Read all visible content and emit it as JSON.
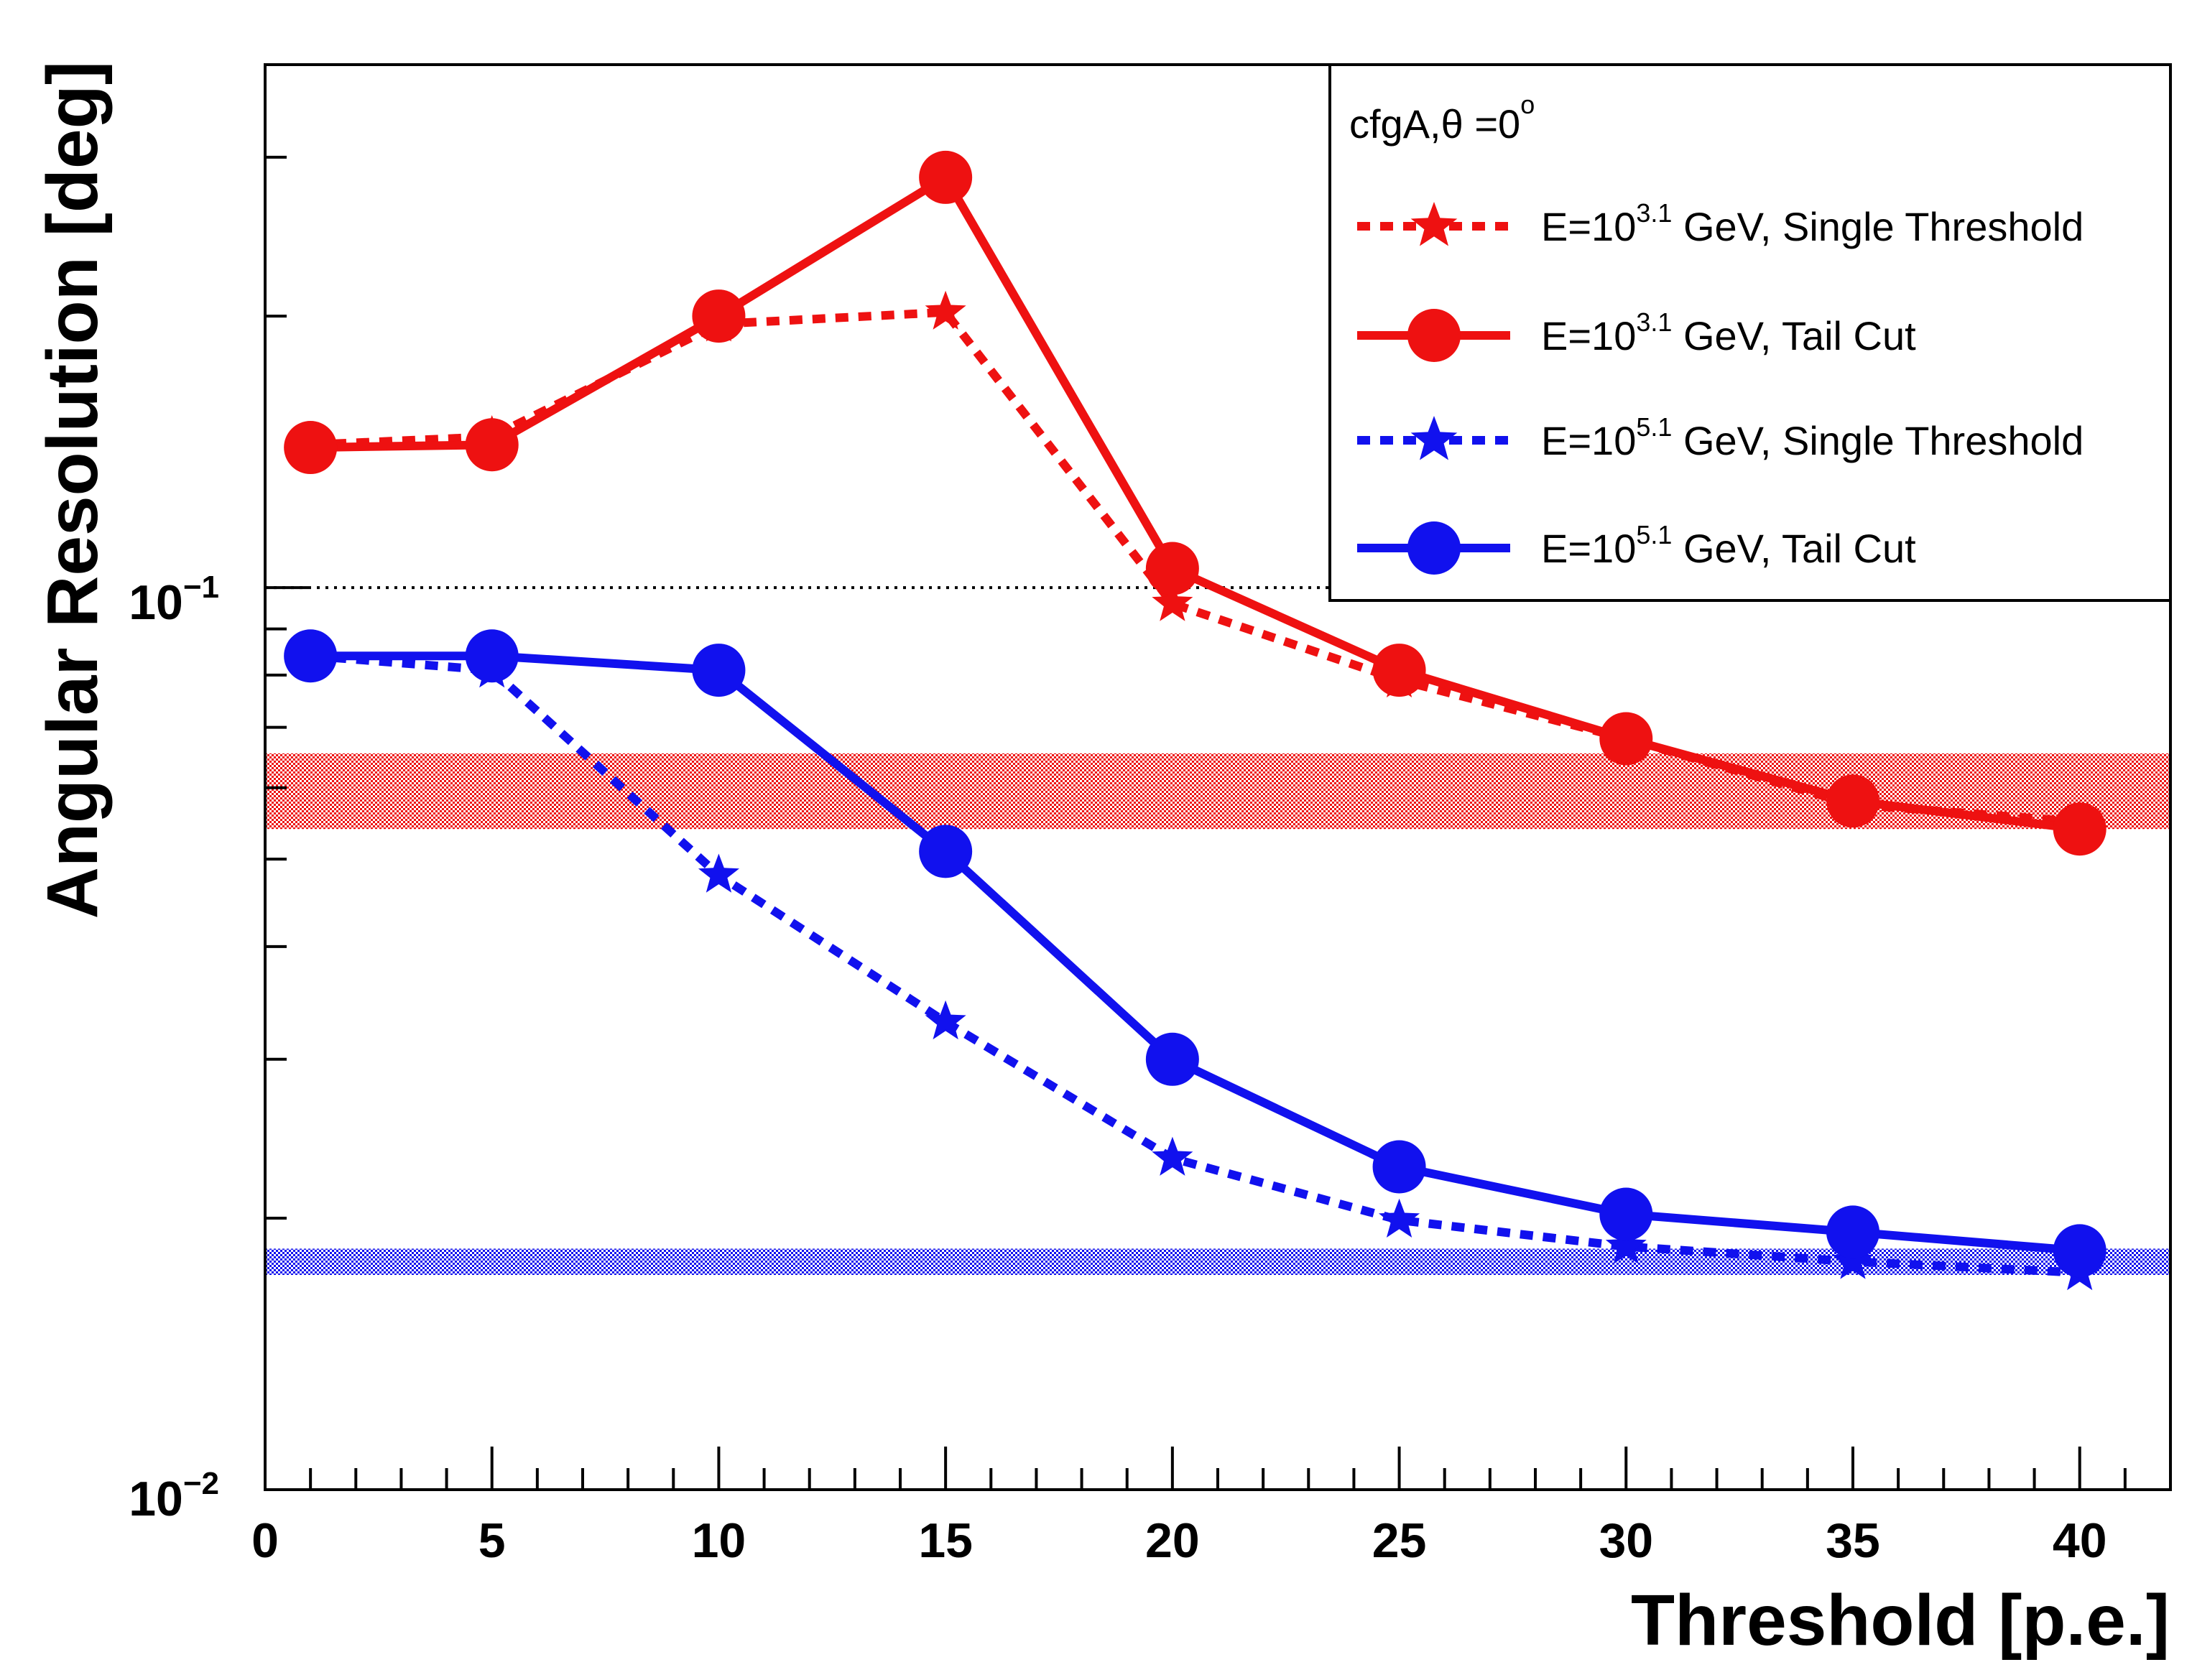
{
  "chart_data": {
    "type": "line",
    "xlabel": "Threshold [p.e.]",
    "ylabel": "Angular Resolution [deg]",
    "xlim": [
      0,
      42
    ],
    "ylim": [
      0.01,
      0.38
    ],
    "yscale": "log",
    "x_ticks": [
      "0",
      "5",
      "10",
      "15",
      "20",
      "25",
      "30",
      "35",
      "40"
    ],
    "y_ticks": [
      {
        "base": "10",
        "exp": "−1",
        "value": 0.1
      },
      {
        "base": "10",
        "exp": "−2",
        "value": 0.01
      }
    ],
    "reference_line": {
      "y": 0.1,
      "style": "dotted",
      "color": "#000000"
    },
    "bands": [
      {
        "color": "#ee1111",
        "ymin": 0.054,
        "ymax": 0.0655
      },
      {
        "color": "#1111ee",
        "ymin": 0.0173,
        "ymax": 0.0185
      }
    ],
    "legend": {
      "title_prefix": "cfgA,",
      "title_theta": "θ",
      "title_suffix": " =0",
      "title_degree": "o",
      "placement": "top-right"
    },
    "series": [
      {
        "name": "E=10^3.1 GeV, Single Threshold",
        "label_base": "E=10",
        "label_exp": "3.1",
        "label_rest": " GeV, Single Threshold",
        "color": "#ee1111",
        "line": "dashed",
        "marker": "star",
        "x": [
          1,
          5,
          10,
          15,
          20,
          25,
          30,
          35,
          40
        ],
        "values": [
          0.144,
          0.147,
          0.196,
          0.202,
          0.096,
          0.079,
          0.068,
          0.0575,
          0.055
        ]
      },
      {
        "name": "E=10^3.1 GeV, Tail Cut",
        "label_base": "E=10",
        "label_exp": "3.1",
        "label_rest": " GeV, Tail Cut",
        "color": "#ee1111",
        "line": "solid",
        "marker": "circle",
        "x": [
          1,
          5,
          10,
          15,
          20,
          25,
          30,
          35,
          40
        ],
        "values": [
          0.143,
          0.144,
          0.2,
          0.285,
          0.105,
          0.081,
          0.068,
          0.058,
          0.054
        ]
      },
      {
        "name": "E=10^5.1 GeV, Single Threshold",
        "label_base": "E=10",
        "label_exp": "5.1",
        "label_rest": " GeV, Single Threshold",
        "color": "#1111ee",
        "line": "dashed",
        "marker": "star",
        "x": [
          1,
          5,
          10,
          15,
          20,
          25,
          30,
          35,
          40
        ],
        "values": [
          0.084,
          0.081,
          0.048,
          0.033,
          0.0233,
          0.0199,
          0.0186,
          0.0179,
          0.0174
        ]
      },
      {
        "name": "E=10^5.1 GeV, Tail Cut",
        "label_base": "E=10",
        "label_exp": "5.1",
        "label_rest": " GeV, Tail Cut",
        "color": "#1111ee",
        "line": "solid",
        "marker": "circle",
        "x": [
          1,
          5,
          10,
          15,
          20,
          25,
          30,
          35,
          40
        ],
        "values": [
          0.084,
          0.084,
          0.081,
          0.051,
          0.03,
          0.0228,
          0.0202,
          0.0193,
          0.0184
        ]
      }
    ]
  }
}
